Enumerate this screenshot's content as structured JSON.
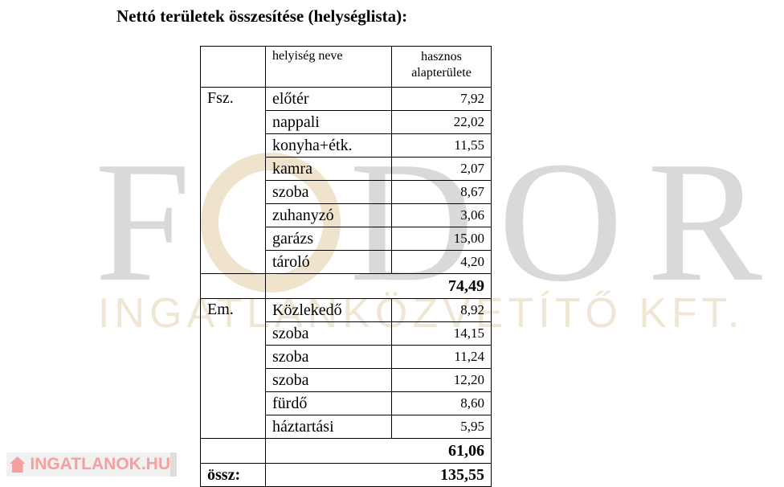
{
  "title": "Nettó területek összesítése (helységlista):",
  "watermark": {
    "main": "FODOR",
    "sub": "INGATLANKÖZVETÍTŐ KFT."
  },
  "header": {
    "col1": "",
    "col2": "helyiség neve",
    "col3": "hasznos alapterülete"
  },
  "groups": [
    {
      "label": "Fsz.",
      "rows": [
        {
          "name": "előtér",
          "area": "7,92"
        },
        {
          "name": "nappali",
          "area": "22,02"
        },
        {
          "name": "konyha+étk.",
          "area": "11,55"
        },
        {
          "name": "kamra",
          "area": "2,07"
        },
        {
          "name": "szoba",
          "area": "8,67"
        },
        {
          "name": "zuhanyzó",
          "area": "3,06"
        },
        {
          "name": "garázs",
          "area": "15,00"
        },
        {
          "name": "tároló",
          "area": "4,20"
        }
      ],
      "subtotal": "74,49"
    },
    {
      "label": "Em.",
      "rows": [
        {
          "name": "Közlekedő",
          "area": "8,92"
        },
        {
          "name": "szoba",
          "area": "14,15"
        },
        {
          "name": "szoba",
          "area": "11,24"
        },
        {
          "name": "szoba",
          "area": "12,20"
        },
        {
          "name": "fürdő",
          "area": "8,60"
        },
        {
          "name": "háztartási",
          "area": "5,95"
        }
      ],
      "subtotal": "61,06"
    }
  ],
  "total": {
    "label": "össz:",
    "value": "135,55"
  },
  "badge": {
    "text": "INGATLANOK.HU",
    "icon": "house-icon",
    "color": "#f3a0a0"
  }
}
